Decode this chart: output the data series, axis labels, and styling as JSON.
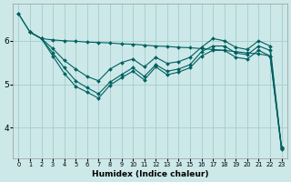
{
  "xlabel": "Humidex (Indice chaleur)",
  "background_color": "#cce8e8",
  "grid_color": "#a8cccc",
  "line_color": "#006060",
  "xlim": [
    -0.5,
    23.5
  ],
  "ylim": [
    3.3,
    6.85
  ],
  "yticks": [
    4,
    5,
    6
  ],
  "series": [
    {
      "x": [
        0,
        1,
        2,
        3,
        4,
        5,
        6,
        7,
        8,
        9,
        10,
        11,
        12,
        13,
        14,
        15,
        16,
        17,
        18,
        19,
        20,
        21,
        22,
        23
      ],
      "y": [
        6.62,
        6.2,
        6.05,
        6.02,
        6.0,
        5.99,
        5.97,
        5.96,
        5.95,
        5.93,
        5.92,
        5.9,
        5.88,
        5.87,
        5.85,
        5.84,
        5.82,
        5.8,
        5.78,
        5.75,
        5.72,
        5.7,
        5.65,
        3.55
      ]
    },
    {
      "x": [
        0,
        1,
        2,
        3,
        4,
        5,
        6,
        7,
        8,
        9,
        10,
        11,
        12,
        13,
        14,
        15,
        16,
        17,
        18,
        19,
        20,
        21,
        22,
        23
      ],
      "y": [
        6.62,
        6.2,
        6.05,
        5.82,
        5.55,
        5.35,
        5.18,
        5.08,
        5.35,
        5.5,
        5.58,
        5.4,
        5.62,
        5.48,
        5.52,
        5.62,
        5.85,
        6.05,
        6.0,
        5.85,
        5.8,
        6.0,
        5.88,
        3.55
      ]
    },
    {
      "x": [
        1,
        2,
        3,
        4,
        5,
        6,
        7,
        8,
        9,
        10,
        11,
        12,
        13,
        14,
        15,
        16,
        17,
        18,
        19,
        20,
        21,
        22,
        23
      ],
      "y": [
        6.2,
        6.05,
        5.72,
        5.38,
        5.08,
        4.92,
        4.78,
        5.05,
        5.22,
        5.38,
        5.18,
        5.45,
        5.3,
        5.35,
        5.45,
        5.75,
        5.88,
        5.88,
        5.72,
        5.68,
        5.88,
        5.78,
        3.52
      ]
    },
    {
      "x": [
        1,
        2,
        3,
        4,
        5,
        6,
        7,
        8,
        9,
        10,
        11,
        12,
        13,
        14,
        15,
        16,
        17,
        18,
        19,
        20,
        21,
        22,
        23
      ],
      "y": [
        6.2,
        6.05,
        5.65,
        5.25,
        4.95,
        4.82,
        4.68,
        4.98,
        5.15,
        5.3,
        5.1,
        5.4,
        5.22,
        5.28,
        5.38,
        5.65,
        5.78,
        5.78,
        5.62,
        5.58,
        5.78,
        5.65,
        3.5
      ]
    }
  ]
}
